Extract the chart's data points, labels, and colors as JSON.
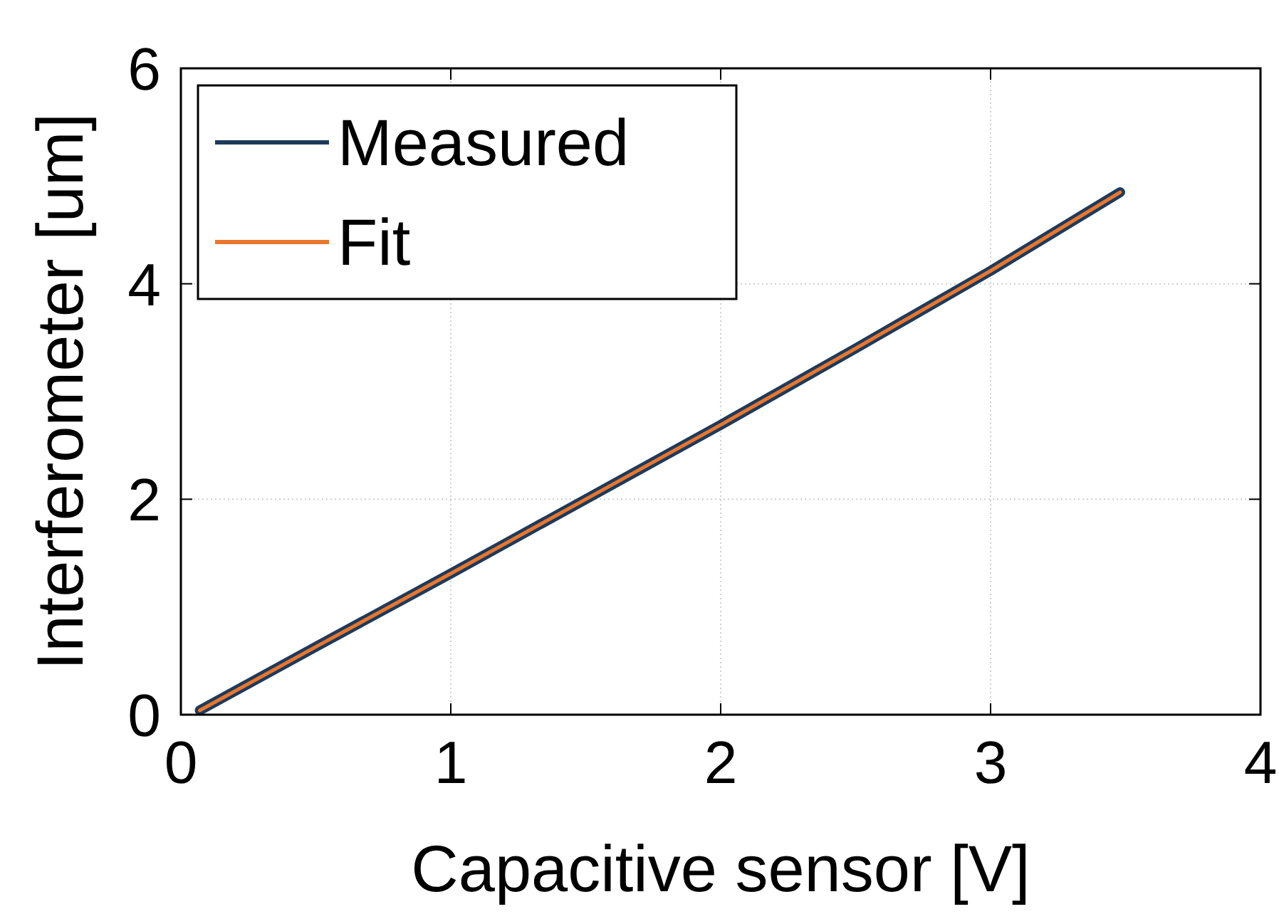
{
  "chart_data": {
    "type": "line",
    "xlabel": "Capacitive sensor [V]",
    "ylabel": "Interferometer [um]",
    "xlim": [
      0,
      4
    ],
    "xticks": [
      0,
      1,
      2,
      3,
      4
    ],
    "ylim": [
      0,
      6
    ],
    "yticks": [
      0,
      2,
      4,
      6
    ],
    "grid": true,
    "legend": "top left",
    "marker": "none",
    "line_style": "solid",
    "series": [
      {
        "name": "Measured",
        "color": "#1f3a5a",
        "x": [
          0.07,
          0.5,
          1,
          1.5,
          2,
          2.5,
          3,
          3.48
        ],
        "values": [
          0.04,
          0.63,
          1.31,
          2.0,
          2.69,
          3.4,
          4.12,
          4.85
        ]
      },
      {
        "name": "Fit",
        "color": "#e8772e",
        "x": [
          0.07,
          0.5,
          1,
          1.5,
          2,
          2.5,
          3,
          3.48
        ],
        "values": [
          0.04,
          0.63,
          1.31,
          2.0,
          2.69,
          3.4,
          4.12,
          4.85
        ]
      }
    ]
  }
}
